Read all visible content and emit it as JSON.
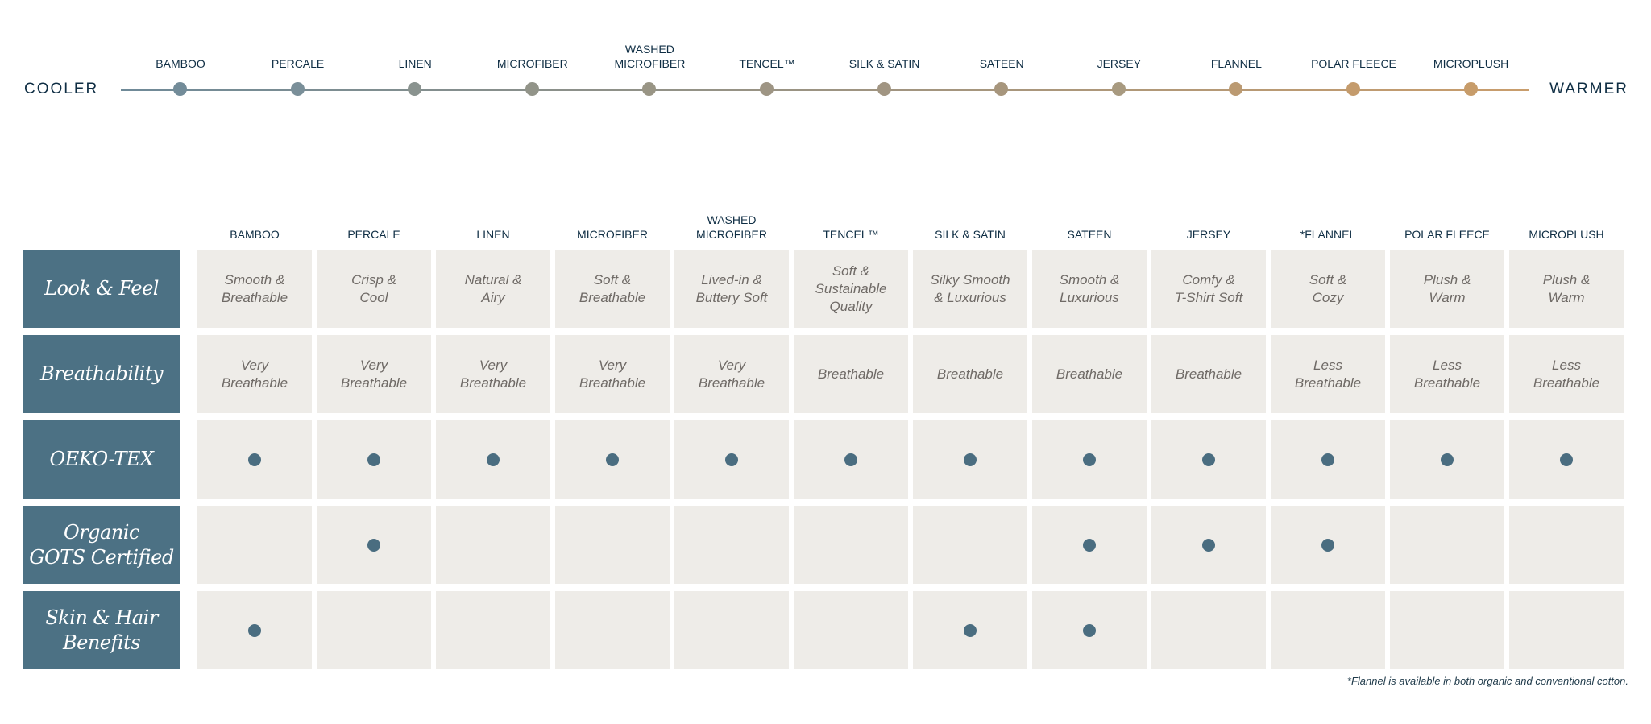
{
  "scale": {
    "cooler_label": "COOLER",
    "warmer_label": "WARMER",
    "gradient_start": "#6f8a98",
    "gradient_end": "#c99d6c",
    "items": [
      {
        "label": "BAMBOO",
        "color": "#738c99"
      },
      {
        "label": "PERCALE",
        "color": "#7a8f99"
      },
      {
        "label": "LINEN",
        "color": "#8a938f"
      },
      {
        "label": "MICROFIBER",
        "color": "#929489"
      },
      {
        "label": "WASHED\nMICROFIBER",
        "color": "#999585"
      },
      {
        "label": "TENCEL™",
        "color": "#9e9584"
      },
      {
        "label": "SILK & SATIN",
        "color": "#a19582"
      },
      {
        "label": "SATEEN",
        "color": "#a7967d"
      },
      {
        "label": "JERSEY",
        "color": "#a89a80"
      },
      {
        "label": "FLANNEL",
        "color": "#bb9a72"
      },
      {
        "label": "POLAR FLEECE",
        "color": "#c49b6c"
      },
      {
        "label": "MICROPLUSH",
        "color": "#c79c6a"
      }
    ]
  },
  "table": {
    "columns": [
      "BAMBOO",
      "PERCALE",
      "LINEN",
      "MICROFIBER",
      "WASHED\nMICROFIBER",
      "TENCEL™",
      "SILK & SATIN",
      "SATEEN",
      "JERSEY",
      "*FLANNEL",
      "POLAR FLEECE",
      "MICROPLUSH"
    ],
    "rows": [
      {
        "label": "Look & Feel",
        "cells": [
          "Smooth &\nBreathable",
          "Crisp &\nCool",
          "Natural &\nAiry",
          "Soft &\nBreathable",
          "Lived-in &\nButtery Soft",
          "Soft &\nSustainable\nQuality",
          "Silky Smooth\n& Luxurious",
          "Smooth &\nLuxurious",
          "Comfy &\nT-Shirt Soft",
          "Soft &\nCozy",
          "Plush &\nWarm",
          "Plush &\nWarm"
        ]
      },
      {
        "label": "Breathability",
        "cells": [
          "Very\nBreathable",
          "Very\nBreathable",
          "Very\nBreathable",
          "Very\nBreathable",
          "Very\nBreathable",
          "Breathable",
          "Breathable",
          "Breathable",
          "Breathable",
          "Less\nBreathable",
          "Less\nBreathable",
          "Less\nBreathable"
        ]
      },
      {
        "label": "OEKO-TEX",
        "checks": [
          true,
          true,
          true,
          true,
          true,
          true,
          true,
          true,
          true,
          true,
          true,
          true
        ]
      },
      {
        "label": "Organic\nGOTS Certified",
        "checks": [
          false,
          true,
          false,
          false,
          false,
          false,
          false,
          true,
          true,
          true,
          false,
          false
        ]
      },
      {
        "label": "Skin & Hair\nBenefits",
        "checks": [
          true,
          false,
          false,
          false,
          false,
          false,
          true,
          true,
          false,
          false,
          false,
          false
        ]
      }
    ]
  },
  "footnote": "*Flannel is available in both organic and conventional cotton.",
  "colors": {
    "row_label_bg": "#4c7184",
    "cell_bg": "#eeece8",
    "dot": "#4a6d80"
  }
}
